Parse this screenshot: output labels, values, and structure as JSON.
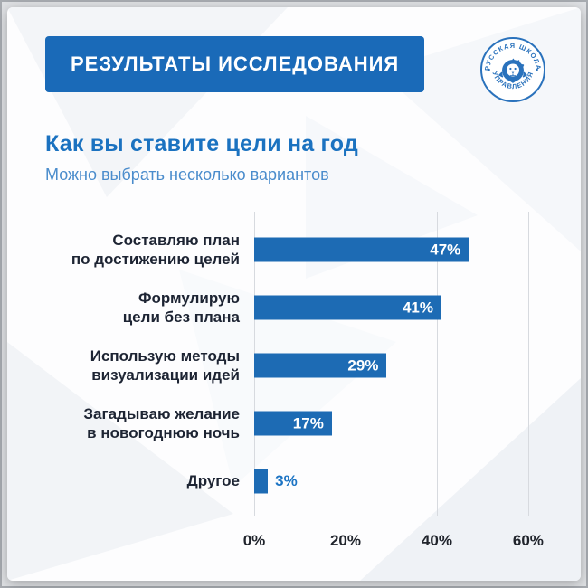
{
  "banner": {
    "title": "РЕЗУЛЬТАТЫ ИССЛЕДОВАНИЯ"
  },
  "logo": {
    "arc_top": "РУССКАЯ ШКОЛА",
    "arc_bottom": "УПРАВЛЕНИЯ"
  },
  "heading": "Как вы ставите цели на год",
  "subheading": "Можно выбрать несколько вариантов",
  "colors": {
    "banner_bg": "#1a6ab8",
    "heading": "#1b72c0",
    "subheading": "#4a8ccc",
    "bar": "#1d6bb4",
    "inside_label": "#ffffff",
    "outside_label": "#1c74c4",
    "gridline": "#d7dadf",
    "category_text": "#1d2433"
  },
  "chart_data": {
    "type": "bar",
    "orientation": "horizontal",
    "title": "Как вы ставите цели на год",
    "subtitle": "Можно выбрать несколько вариантов",
    "categories": [
      "Составляю план\nпо достижению целей",
      "Формулирую\nцели без плана",
      "Использую методы\nвизуализации идей",
      "Загадываю желание\nв новогоднюю ночь",
      "Другое"
    ],
    "values": [
      47,
      41,
      29,
      17,
      3
    ],
    "value_labels": [
      "47%",
      "41%",
      "29%",
      "17%",
      "3%"
    ],
    "x_ticks": [
      {
        "label": "0%",
        "value": 0
      },
      {
        "label": "20%",
        "value": 20
      },
      {
        "label": "40%",
        "value": 40
      },
      {
        "label": "60%",
        "value": 60
      }
    ],
    "xlim": [
      0,
      62
    ],
    "grid": true,
    "legend": false,
    "bar_color": "#1d6bb4",
    "inside_label_threshold": 10
  }
}
